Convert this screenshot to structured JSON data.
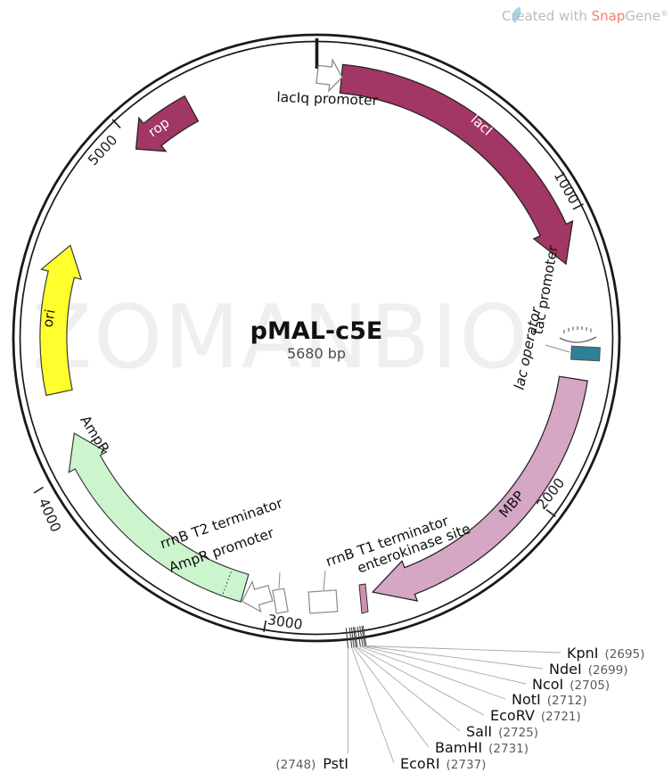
{
  "watermark": "ZOMANBIO",
  "credit": {
    "prefix": "Created with ",
    "brand_highlight": "Snap",
    "brand_rest": "Gene",
    "registered": "®",
    "gray_color": "#b9bdc1",
    "highlight_color": "#f28172",
    "icon_color": "#a9d5e8"
  },
  "title": {
    "name": "pMAL-c5E",
    "size": "5680 bp"
  },
  "tick_labels": [
    "1000",
    "2000",
    "3000",
    "4000",
    "5000"
  ],
  "features": {
    "lacIq_promoter": {
      "label": "lacIq promoter",
      "color": "#ffffff"
    },
    "lacI": {
      "label": "lacI",
      "color": "#A23665"
    },
    "tac_promoter": {
      "label": "tac promoter"
    },
    "lac_operator": {
      "label": "lac operator",
      "color": "#2F7F96"
    },
    "MBP": {
      "label": "MBP",
      "color": "#D6A6C5"
    },
    "enterokinase_site": {
      "label": "enterokinase site",
      "color": "#CE8FB2"
    },
    "rrnB_T1_terminator": {
      "label": "rrnB T1 terminator",
      "color": "#ffffff"
    },
    "rrnB_T2_terminator": {
      "label": "rrnB T2 terminator",
      "color": "#ffffff"
    },
    "AmpR_promoter": {
      "label": "AmpR promoter",
      "color": "#ffffff"
    },
    "AmpR": {
      "label": "AmpR",
      "color": "#CCF5CD"
    },
    "ori": {
      "label": "ori",
      "color": "#FFFF2E"
    },
    "rop": {
      "label": "rop",
      "color": "#A23665"
    }
  },
  "enzymes": [
    {
      "name": "KpnI",
      "position": "(2695)"
    },
    {
      "name": "NdeI",
      "position": "(2699)"
    },
    {
      "name": "NcoI",
      "position": "(2705)"
    },
    {
      "name": "NotI",
      "position": "(2712)"
    },
    {
      "name": "EcoRV",
      "position": "(2721)"
    },
    {
      "name": "SalI",
      "position": "(2725)"
    },
    {
      "name": "BamHI",
      "position": "(2731)"
    },
    {
      "name": "EcoRI",
      "position": "(2737)"
    },
    {
      "name": "PstI",
      "position": "(2748)"
    }
  ]
}
